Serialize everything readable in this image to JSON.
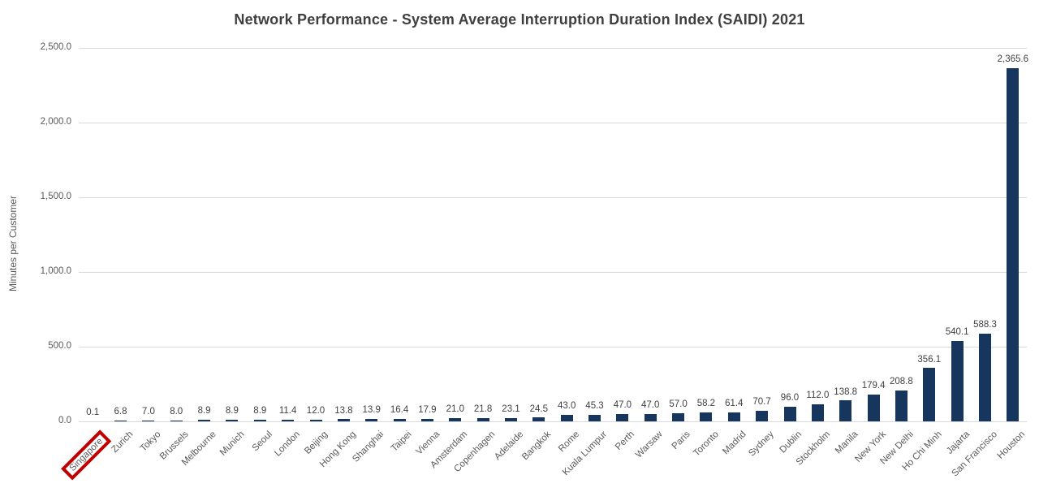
{
  "chart_data": {
    "type": "bar",
    "title": "Network Performance - System Average Interruption Duration Index (SAIDI) 2021",
    "xlabel": "",
    "ylabel": "Minutes per Customer",
    "ylim": [
      0,
      2500
    ],
    "ytick_step": 500,
    "ytick_labels": [
      "0.0",
      "500.0",
      "1,000.0",
      "1,500.0",
      "2,000.0",
      "2,500.0"
    ],
    "grid": true,
    "legend": false,
    "bar_color": "#17365d",
    "gridline_color": "#d9d9d9",
    "value_label_color": "#404040",
    "axis_label_color": "#595959",
    "highlight": {
      "category": "Singapore",
      "style": "red-outline-box",
      "color": "#c00000"
    },
    "categories": [
      "Singapore",
      "Zurich",
      "Tokyo",
      "Brussels",
      "Melbourne",
      "Munich",
      "Seoul",
      "London",
      "Beijing",
      "Hong Kong",
      "Shanghai",
      "Taipei",
      "Vienna",
      "Amsterdam",
      "Copenhagen",
      "Adelaide",
      "Bangkok",
      "Rome",
      "Kuala Lumpur",
      "Perth",
      "Warsaw",
      "Paris",
      "Toronto",
      "Madrid",
      "Sydney",
      "Dublin",
      "Stockholm",
      "Manila",
      "New York",
      "New Delhi",
      "Ho Chi Minh",
      "Jajarta",
      "San Francisco",
      "Houston"
    ],
    "values": [
      0.1,
      6.8,
      7.0,
      8.0,
      8.9,
      8.9,
      8.9,
      11.4,
      12.0,
      13.8,
      13.9,
      16.4,
      17.9,
      21.0,
      21.8,
      23.1,
      24.5,
      43.0,
      45.3,
      47.0,
      47.0,
      57.0,
      58.2,
      61.4,
      70.7,
      96.0,
      112.0,
      138.8,
      179.4,
      208.8,
      356.1,
      540.1,
      588.3,
      2365.6
    ],
    "value_labels": [
      "0.1",
      "6.8",
      "7.0",
      "8.0",
      "8.9",
      "8.9",
      "8.9",
      "11.4",
      "12.0",
      "13.8",
      "13.9",
      "16.4",
      "17.9",
      "21.0",
      "21.8",
      "23.1",
      "24.5",
      "43.0",
      "45.3",
      "47.0",
      "47.0",
      "57.0",
      "58.2",
      "61.4",
      "70.7",
      "96.0",
      "112.0",
      "138.8",
      "179.4",
      "208.8",
      "356.1",
      "540.1",
      "588.3",
      "2,365.6"
    ]
  }
}
